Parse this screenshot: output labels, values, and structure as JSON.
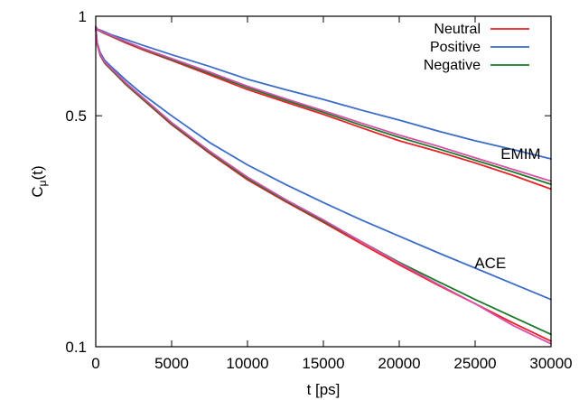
{
  "chart_data": {
    "type": "line",
    "xlabel": "t [ps]",
    "ylabel": "C",
    "ylabel_sub": "μ",
    "ylabel_suffix": "(t)",
    "xlim": [
      0,
      30000
    ],
    "ylim": [
      0.1,
      1
    ],
    "yscale": "log",
    "x_ticks": [
      0,
      5000,
      10000,
      15000,
      20000,
      25000,
      30000
    ],
    "x_tick_labels": [
      "0",
      "5000",
      "10000",
      "15000",
      "20000",
      "25000",
      "30000"
    ],
    "y_ticks": [
      0.1,
      0.5,
      1
    ],
    "y_tick_labels": [
      "0.1",
      "0.5",
      "1"
    ],
    "grid": false,
    "legend_position": "top-right",
    "legend": [
      {
        "label": "Neutral",
        "color": "#e8202a"
      },
      {
        "label": "Positive",
        "color": "#3a6cc8"
      },
      {
        "label": "Negative",
        "color": "#1a7a2a"
      }
    ],
    "annotations": [
      {
        "text": "EMIM",
        "x": 28000,
        "y": 0.37
      },
      {
        "text": "ACE",
        "x": 26000,
        "y": 0.173
      }
    ],
    "series": [
      {
        "name": "Neutral",
        "group": "EMIM",
        "color": "#e8202a",
        "x": [
          0,
          100,
          500,
          1000,
          2000,
          3000,
          5000,
          7500,
          10000,
          12500,
          15000,
          17500,
          20000,
          22500,
          25000,
          27500,
          30000
        ],
        "y": [
          0.93,
          0.91,
          0.89,
          0.87,
          0.83,
          0.795,
          0.735,
          0.665,
          0.6,
          0.55,
          0.505,
          0.46,
          0.42,
          0.39,
          0.36,
          0.33,
          0.3
        ]
      },
      {
        "name": "Positive",
        "group": "EMIM",
        "color": "#3a6cc8",
        "x": [
          0,
          100,
          500,
          1000,
          2000,
          3000,
          5000,
          7500,
          10000,
          12500,
          15000,
          17500,
          20000,
          22500,
          25000,
          27500,
          30000
        ],
        "y": [
          0.93,
          0.915,
          0.9,
          0.88,
          0.85,
          0.82,
          0.765,
          0.705,
          0.645,
          0.6,
          0.56,
          0.52,
          0.485,
          0.45,
          0.42,
          0.395,
          0.37
        ]
      },
      {
        "name": "Negative",
        "group": "EMIM",
        "color": "#1a7a2a",
        "x": [
          0,
          100,
          500,
          1000,
          2000,
          3000,
          5000,
          7500,
          10000,
          12500,
          15000,
          17500,
          20000,
          22500,
          25000,
          27500,
          30000
        ],
        "y": [
          0.93,
          0.912,
          0.892,
          0.872,
          0.835,
          0.8,
          0.74,
          0.672,
          0.608,
          0.557,
          0.512,
          0.468,
          0.43,
          0.398,
          0.367,
          0.338,
          0.31
        ]
      },
      {
        "name": "",
        "group": "EMIM",
        "color": "#d94fa8",
        "x": [
          0,
          100,
          500,
          1000,
          2000,
          3000,
          5000,
          7500,
          10000,
          12500,
          15000,
          17500,
          20000,
          22500,
          25000,
          27500,
          30000
        ],
        "y": [
          0.93,
          0.913,
          0.894,
          0.875,
          0.838,
          0.803,
          0.745,
          0.678,
          0.614,
          0.563,
          0.518,
          0.475,
          0.437,
          0.405,
          0.373,
          0.344,
          0.317
        ]
      },
      {
        "name": "Neutral",
        "group": "ACE",
        "color": "#e8202a",
        "x": [
          0,
          100,
          300,
          600,
          1000,
          2000,
          3000,
          5000,
          7500,
          10000,
          12500,
          15000,
          17500,
          20000,
          22500,
          25000,
          27500,
          30000
        ],
        "y": [
          0.92,
          0.82,
          0.76,
          0.72,
          0.69,
          0.62,
          0.565,
          0.47,
          0.385,
          0.32,
          0.275,
          0.238,
          0.205,
          0.177,
          0.154,
          0.135,
          0.118,
          0.104
        ]
      },
      {
        "name": "Positive",
        "group": "ACE",
        "color": "#3a6cc8",
        "x": [
          0,
          100,
          300,
          600,
          1000,
          2000,
          3000,
          5000,
          7500,
          10000,
          12500,
          15000,
          17500,
          20000,
          22500,
          25000,
          27500,
          30000
        ],
        "y": [
          0.92,
          0.83,
          0.775,
          0.735,
          0.705,
          0.64,
          0.585,
          0.5,
          0.415,
          0.355,
          0.31,
          0.273,
          0.242,
          0.216,
          0.193,
          0.173,
          0.155,
          0.139
        ]
      },
      {
        "name": "Negative",
        "group": "ACE",
        "color": "#1a7a2a",
        "x": [
          0,
          100,
          300,
          600,
          1000,
          2000,
          3000,
          5000,
          7500,
          10000,
          12500,
          15000,
          17500,
          20000,
          22500,
          25000,
          27500,
          30000
        ],
        "y": [
          0.92,
          0.82,
          0.762,
          0.722,
          0.692,
          0.623,
          0.568,
          0.473,
          0.388,
          0.323,
          0.277,
          0.24,
          0.208,
          0.18,
          0.158,
          0.139,
          0.123,
          0.109
        ]
      },
      {
        "name": "",
        "group": "ACE",
        "color": "#d94fa8",
        "x": [
          0,
          100,
          300,
          600,
          1000,
          2000,
          3000,
          5000,
          7500,
          10000,
          12500,
          15000,
          17500,
          20000,
          22500,
          25000,
          27500,
          30000
        ],
        "y": [
          0.92,
          0.825,
          0.766,
          0.727,
          0.697,
          0.628,
          0.573,
          0.477,
          0.391,
          0.326,
          0.279,
          0.242,
          0.208,
          0.179,
          0.155,
          0.135,
          0.116,
          0.102
        ]
      }
    ]
  }
}
